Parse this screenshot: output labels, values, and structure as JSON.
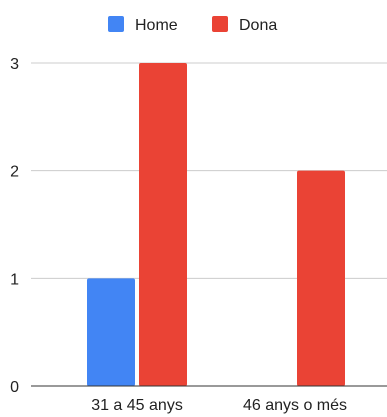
{
  "chart_data": {
    "type": "bar",
    "categories": [
      "31 a 45 anys",
      "46 anys o més"
    ],
    "series": [
      {
        "name": "Home",
        "values": [
          1,
          0
        ],
        "color": "#4285f4"
      },
      {
        "name": "Dona",
        "values": [
          3,
          2
        ],
        "color": "#ea4335"
      }
    ],
    "ylim": [
      0,
      3
    ],
    "yticks": [
      "0",
      "1",
      "2",
      "3"
    ],
    "grid": true,
    "legend_position": "top"
  }
}
